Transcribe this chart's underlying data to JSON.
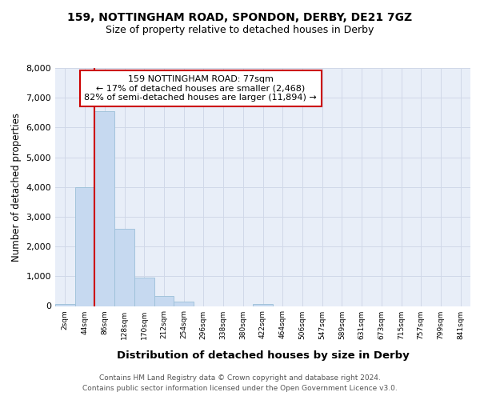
{
  "title_line1": "159, NOTTINGHAM ROAD, SPONDON, DERBY, DE21 7GZ",
  "title_line2": "Size of property relative to detached houses in Derby",
  "xlabel": "Distribution of detached houses by size in Derby",
  "ylabel": "Number of detached properties",
  "footer_line1": "Contains HM Land Registry data © Crown copyright and database right 2024.",
  "footer_line2": "Contains public sector information licensed under the Open Government Licence v3.0.",
  "annotation_line1": "159 NOTTINGHAM ROAD: 77sqm",
  "annotation_line2": "← 17% of detached houses are smaller (2,468)",
  "annotation_line3": "82% of semi-detached houses are larger (11,894) →",
  "bin_labels": [
    "2sqm",
    "44sqm",
    "86sqm",
    "128sqm",
    "170sqm",
    "212sqm",
    "254sqm",
    "296sqm",
    "338sqm",
    "380sqm",
    "422sqm",
    "464sqm",
    "506sqm",
    "547sqm",
    "589sqm",
    "631sqm",
    "673sqm",
    "715sqm",
    "757sqm",
    "799sqm",
    "841sqm"
  ],
  "bin_values": [
    70,
    3980,
    6550,
    2600,
    950,
    330,
    150,
    0,
    0,
    0,
    80,
    0,
    0,
    0,
    0,
    0,
    0,
    0,
    0,
    0,
    0
  ],
  "bar_color": "#c6d9f0",
  "bar_edge_color": "#9bbfd8",
  "vline_color": "#cc0000",
  "vline_position": 1.5,
  "ylim": [
    0,
    8000
  ],
  "yticks": [
    0,
    1000,
    2000,
    3000,
    4000,
    5000,
    6000,
    7000,
    8000
  ],
  "annotation_box_facecolor": "#ffffff",
  "annotation_box_edgecolor": "#cc0000",
  "grid_color": "#d0d8e8",
  "background_color": "#ffffff",
  "plot_bg_color": "#e8eef8"
}
